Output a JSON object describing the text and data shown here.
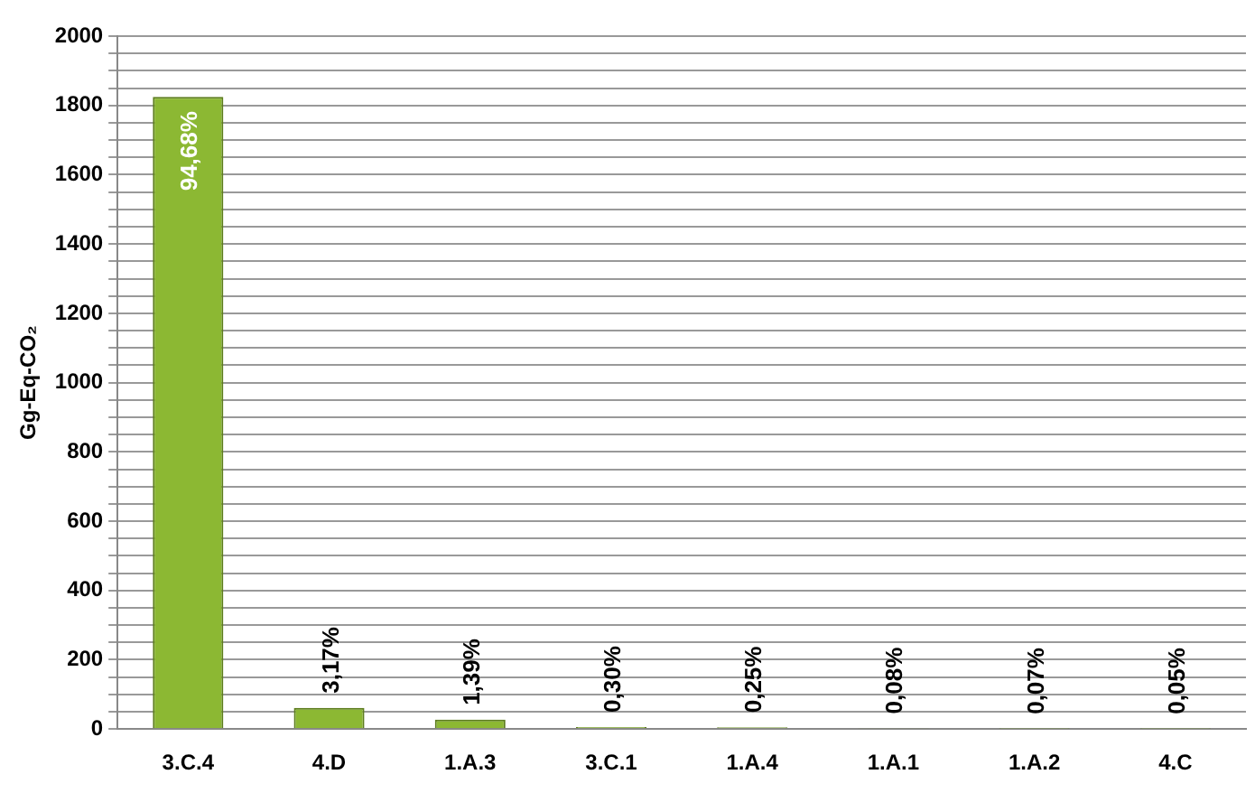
{
  "chart_data": {
    "type": "bar",
    "ylabel": "Gg-Eq-CO₂",
    "categories": [
      "3.C.4",
      "4.D",
      "1.A.3",
      "3.C.1",
      "1.A.4",
      "1.A.1",
      "1.A.2",
      "4.C"
    ],
    "values": [
      1825,
      61,
      27,
      6,
      5,
      2,
      1,
      1
    ],
    "color": "#8cb833",
    "annotations": [
      {
        "text": "94,68%",
        "x": "3.C.4",
        "y": 1825
      },
      {
        "text": "3,17%",
        "x": "4.D",
        "y": 61
      },
      {
        "text": "1,39%",
        "x": "1.A.3",
        "y": 27
      },
      {
        "text": "0,30%",
        "x": "3.C.1",
        "y": 6
      },
      {
        "text": "0,25%",
        "x": "1.A.4",
        "y": 5
      },
      {
        "text": "0,08%",
        "x": "1.A.1",
        "y": 2
      },
      {
        "text": "0,07%",
        "x": "1.A.2",
        "y": 1
      },
      {
        "text": "0,05%",
        "x": "4.C",
        "y": 1
      }
    ],
    "ylim": [
      0,
      2000
    ],
    "yticks": [
      0,
      {
        "value": 50,
        "label": null
      },
      200,
      {
        "value": 250,
        "label": null
      },
      400,
      {
        "value": 450,
        "label": null
      },
      600,
      {
        "value": 650,
        "label": null
      },
      800,
      {
        "value": 850,
        "label": null
      },
      1000,
      {
        "value": 1050,
        "label": null
      },
      1200,
      {
        "value": 1250,
        "label": null
      },
      1400,
      {
        "value": 1450,
        "label": null
      },
      1600,
      {
        "value": 1650,
        "label": null
      },
      1800,
      {
        "value": 1850,
        "label": null
      },
      2000,
      {
        "value": 100,
        "label": null
      },
      {
        "value": 150,
        "label": null
      },
      {
        "value": 300,
        "label": null
      },
      {
        "value": 350,
        "label": null
      },
      {
        "value": 500,
        "label": null
      },
      {
        "value": 550,
        "label": null
      },
      {
        "value": 700,
        "label": null
      },
      {
        "value": 750,
        "label": null
      },
      {
        "value": 900,
        "label": null
      },
      {
        "value": 950,
        "label": null
      },
      {
        "value": 1100,
        "label": null
      },
      {
        "value": 1150,
        "label": null
      },
      {
        "value": 1300,
        "label": null
      },
      {
        "value": 1350,
        "label": null
      },
      {
        "value": 1500,
        "label": null
      },
      {
        "value": 1550,
        "label": null
      },
      {
        "value": 1700,
        "label": null
      },
      {
        "value": 1750,
        "label": null
      },
      {
        "value": 1900,
        "label": null
      },
      {
        "value": 1950,
        "label": null
      }
    ],
    "grid": "y",
    "legend": false
  }
}
